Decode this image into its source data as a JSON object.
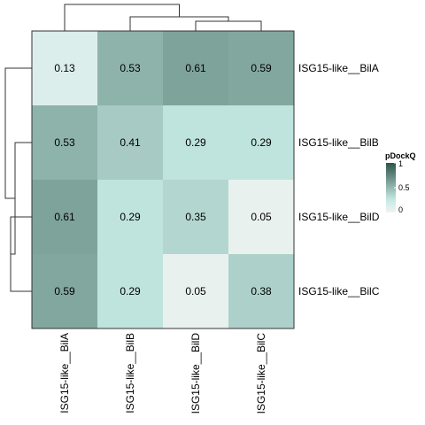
{
  "chart_data": {
    "type": "heatmap",
    "title": "",
    "xlabel": "",
    "ylabel": "",
    "rows": [
      "ISG15-like__BilA",
      "ISG15-like__BilB",
      "ISG15-like__BilD",
      "ISG15-like__BilC"
    ],
    "columns": [
      "ISG15-like__BilA",
      "ISG15-like__BilB",
      "ISG15-like__BilD",
      "ISG15-like__BilC"
    ],
    "values": [
      [
        0.13,
        0.53,
        0.61,
        0.59
      ],
      [
        0.53,
        0.41,
        0.29,
        0.29
      ],
      [
        0.61,
        0.29,
        0.35,
        0.05
      ],
      [
        0.59,
        0.29,
        0.05,
        0.38
      ]
    ],
    "cell_labels": [
      [
        "0.13",
        "0.53",
        "0.61",
        "0.59"
      ],
      [
        "0.53",
        "0.41",
        "0.29",
        "0.29"
      ],
      [
        "0.61",
        "0.29",
        "0.35",
        "0.05"
      ],
      [
        "0.59",
        "0.29",
        "0.05",
        "0.38"
      ]
    ],
    "legend": {
      "title": "pDockQ",
      "ticks": [
        0,
        0.5,
        1
      ],
      "tick_labels": [
        "0",
        "0.5",
        "1"
      ],
      "placement": "right",
      "color_low": "#f2f2f2",
      "color_mid": "#c7ebe5",
      "color_high": "#2f5449",
      "range": [
        0,
        1
      ]
    },
    "row_dendrogram": true,
    "column_dendrogram": true
  }
}
